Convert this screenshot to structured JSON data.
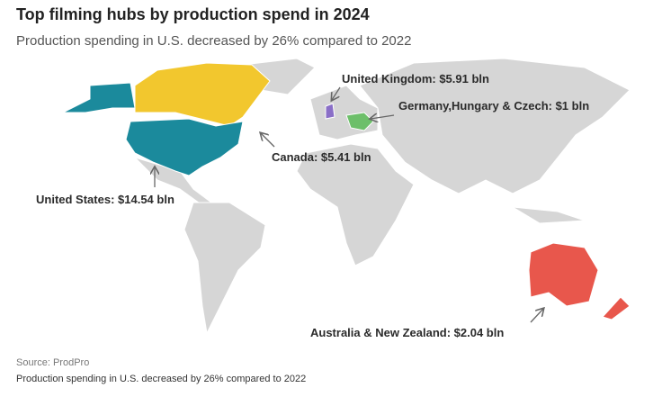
{
  "header": {
    "title": "Top filming hubs by production spend in 2024",
    "subtitle": "Production spending in U.S. decreased by 26% compared to 2022"
  },
  "map": {
    "labels": [
      "United Kingdom: $5.91 bln",
      "Germany,Hungary & Czech: $1 bln",
      "Canada: $5.41 bln",
      "United States: $14.54 bln",
      "Australia & New Zealand: $2.04 bln"
    ]
  },
  "footer": {
    "source": "Source: ProdPro",
    "note": "Production spending in U.S. decreased by 26% compared to 2022"
  }
}
